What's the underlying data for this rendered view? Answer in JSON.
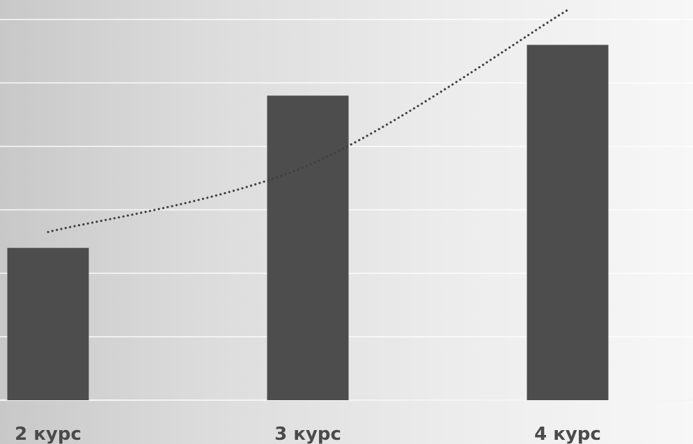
{
  "chart_data": {
    "type": "bar",
    "categories": [
      "2 курс",
      "3 курс",
      "4 курс"
    ],
    "values": [
      24,
      48,
      56
    ],
    "ylim": [
      0,
      60
    ],
    "y_gridlines": [
      0,
      10,
      20,
      30,
      40,
      50,
      60
    ],
    "grid": true,
    "trendline": {
      "type": "polynomial",
      "style": "dotted",
      "values": [
        26.5,
        37,
        61.5
      ]
    },
    "colors": {
      "bar": "#4d4d4d",
      "trendline": "#404040",
      "gridline": "#ffffff",
      "label": "#4a4a4a"
    }
  }
}
